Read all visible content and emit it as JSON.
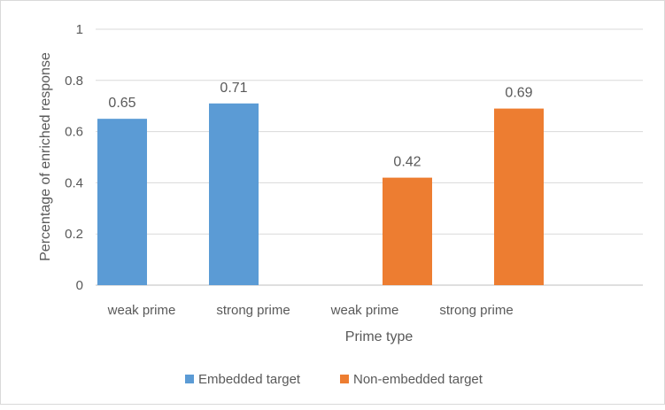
{
  "chart_data": {
    "type": "bar",
    "categories": [
      "weak  prime",
      "strong  prime",
      "weak prime",
      "strong  prime"
    ],
    "series": [
      {
        "name": "Embedded target",
        "color": "#5b9bd5",
        "values": [
          0.65,
          0.71,
          null,
          null
        ]
      },
      {
        "name": "Non-embedded target",
        "color": "#ed7d31",
        "values": [
          null,
          null,
          0.42,
          0.69
        ]
      }
    ],
    "data_labels": [
      [
        "0.65",
        "0.71",
        "",
        ""
      ],
      [
        "",
        "",
        "0.42",
        "0.69"
      ]
    ],
    "title": "",
    "xlabel": "Prime type",
    "ylabel": "Percentage of enriched response",
    "ylim": [
      0,
      1
    ],
    "yticks": [
      "0",
      "0.2",
      "0.4",
      "0.6",
      "0.8",
      "1"
    ],
    "grid": true,
    "legend_position": "bottom"
  }
}
